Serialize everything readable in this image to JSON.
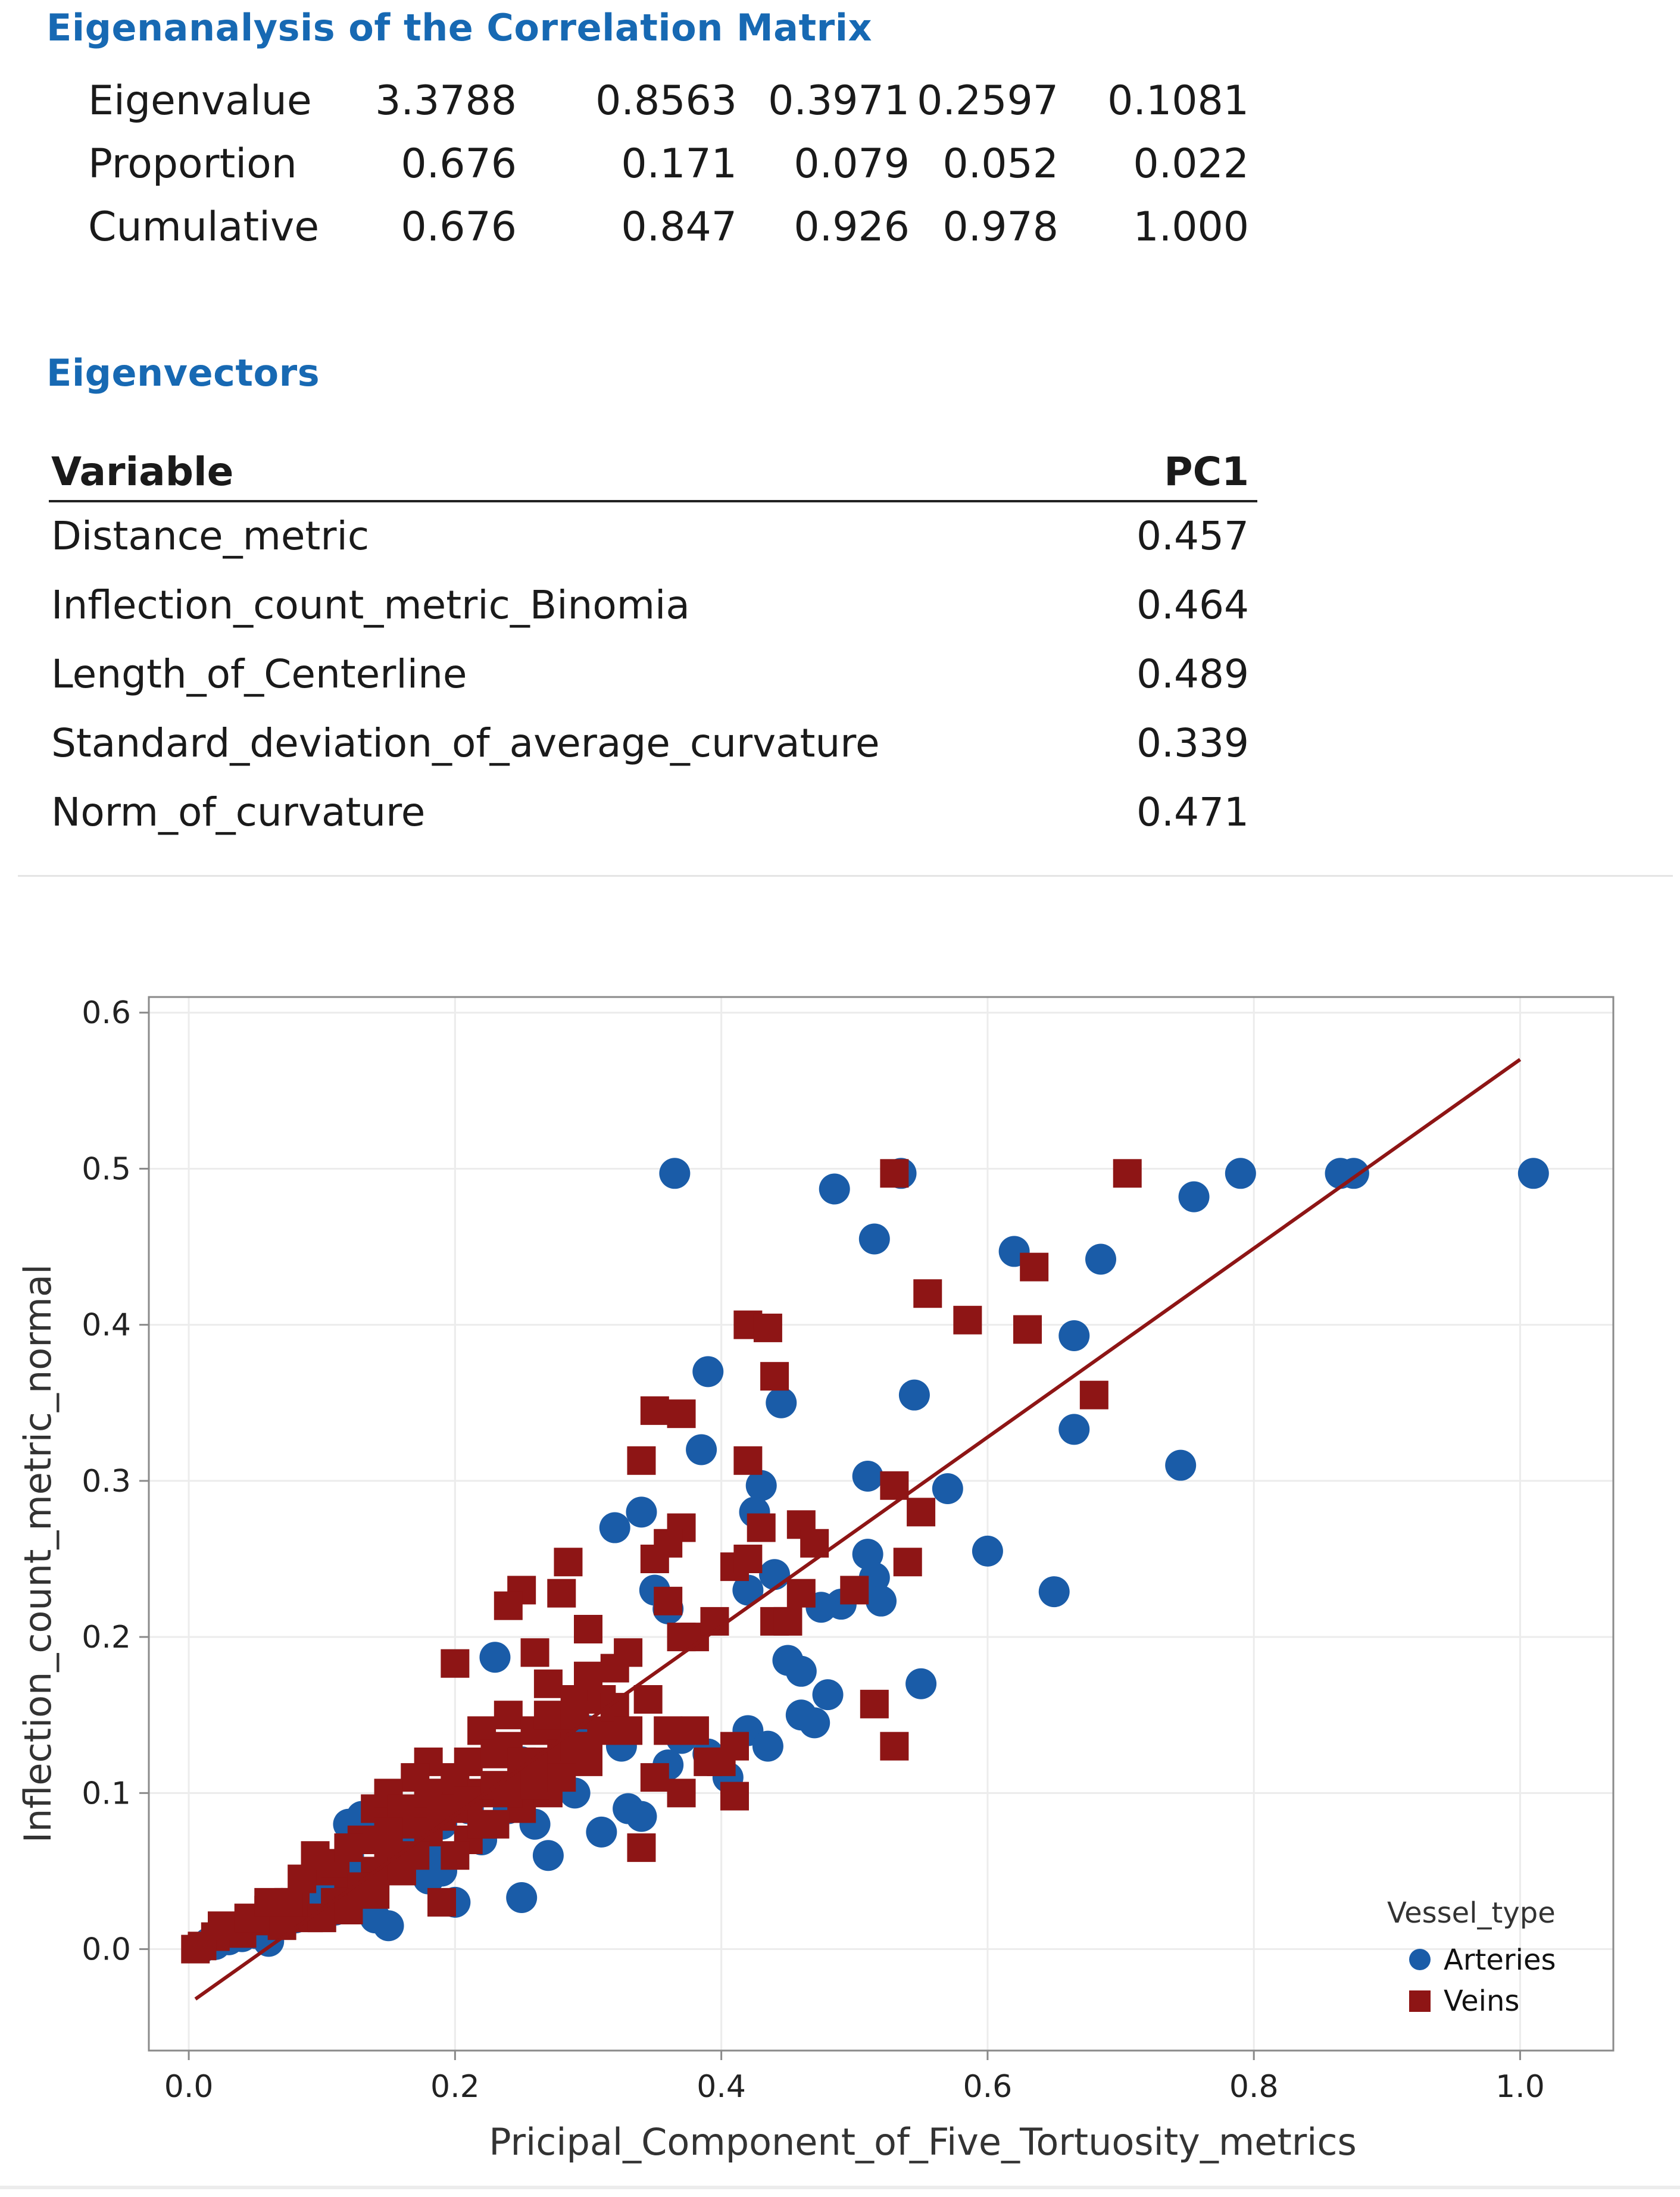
{
  "eigen_title": "Eigenanalysis of the Correlation Matrix",
  "eigen_rows": [
    {
      "label": "Eigenvalue",
      "values": [
        "3.3788",
        "0.8563",
        "0.3971",
        "0.2597",
        "0.1081"
      ]
    },
    {
      "label": "Proportion",
      "values": [
        "0.676",
        "0.171",
        "0.079",
        "0.052",
        "0.022"
      ]
    },
    {
      "label": "Cumulative",
      "values": [
        "0.676",
        "0.847",
        "0.926",
        "0.978",
        "1.000"
      ]
    }
  ],
  "vectors_title": "Eigenvectors",
  "vectors_header": {
    "variable": "Variable",
    "pc": "PC1"
  },
  "vectors": [
    {
      "name": "Distance_metric",
      "value": "0.457"
    },
    {
      "name": "Inflection_count_metric_Binomia",
      "value": "0.464"
    },
    {
      "name": "Length_of_Centerline",
      "value": "0.489"
    },
    {
      "name": "Standard_deviation_of_average_curvature",
      "value": "0.339"
    },
    {
      "name": "Norm_of_curvature",
      "value": "0.471"
    }
  ],
  "chart_data": {
    "type": "scatter",
    "title": "",
    "xlabel": "Pricipal_Component_of_Five_Tortuosity_metrics",
    "ylabel": "Inflection_count_metric_normal",
    "xlim": [
      -0.03,
      1.07
    ],
    "ylim": [
      -0.065,
      0.61
    ],
    "xticks": [
      "0.0",
      "0.2",
      "0.4",
      "0.6",
      "0.8",
      "1.0"
    ],
    "yticks": [
      "0.0",
      "0.1",
      "0.2",
      "0.3",
      "0.4",
      "0.5",
      "0.6"
    ],
    "grid": true,
    "legend": {
      "title": "Vessel_type",
      "position": "bottom-right"
    },
    "series": [
      {
        "name": "Arteries",
        "color": "#1a5ca8",
        "marker": "circle",
        "points": [
          [
            0.365,
            0.497
          ],
          [
            0.485,
            0.487
          ],
          [
            0.535,
            0.497
          ],
          [
            0.515,
            0.455
          ],
          [
            0.755,
            0.482
          ],
          [
            0.79,
            0.497
          ],
          [
            0.865,
            0.497
          ],
          [
            0.875,
            0.497
          ],
          [
            1.01,
            0.497
          ],
          [
            0.62,
            0.447
          ],
          [
            0.685,
            0.442
          ],
          [
            0.665,
            0.393
          ],
          [
            0.39,
            0.37
          ],
          [
            0.445,
            0.35
          ],
          [
            0.545,
            0.355
          ],
          [
            0.665,
            0.333
          ],
          [
            0.745,
            0.31
          ],
          [
            0.385,
            0.32
          ],
          [
            0.43,
            0.297
          ],
          [
            0.425,
            0.28
          ],
          [
            0.51,
            0.303
          ],
          [
            0.57,
            0.295
          ],
          [
            0.34,
            0.28
          ],
          [
            0.32,
            0.27
          ],
          [
            0.6,
            0.255
          ],
          [
            0.65,
            0.229
          ],
          [
            0.51,
            0.253
          ],
          [
            0.515,
            0.238
          ],
          [
            0.52,
            0.223
          ],
          [
            0.49,
            0.221
          ],
          [
            0.475,
            0.219
          ],
          [
            0.42,
            0.23
          ],
          [
            0.44,
            0.24
          ],
          [
            0.35,
            0.23
          ],
          [
            0.36,
            0.218
          ],
          [
            0.45,
            0.185
          ],
          [
            0.46,
            0.178
          ],
          [
            0.55,
            0.17
          ],
          [
            0.48,
            0.163
          ],
          [
            0.42,
            0.14
          ],
          [
            0.435,
            0.13
          ],
          [
            0.46,
            0.15
          ],
          [
            0.47,
            0.145
          ],
          [
            0.39,
            0.125
          ],
          [
            0.37,
            0.135
          ],
          [
            0.405,
            0.11
          ],
          [
            0.23,
            0.187
          ],
          [
            0.25,
            0.12
          ],
          [
            0.27,
            0.11
          ],
          [
            0.3,
            0.14
          ],
          [
            0.325,
            0.13
          ],
          [
            0.36,
            0.118
          ],
          [
            0.33,
            0.09
          ],
          [
            0.34,
            0.085
          ],
          [
            0.25,
            0.033
          ],
          [
            0.27,
            0.06
          ],
          [
            0.21,
            0.09
          ],
          [
            0.19,
            0.08
          ],
          [
            0.19,
            0.05
          ],
          [
            0.14,
            0.08
          ],
          [
            0.16,
            0.07
          ],
          [
            0.18,
            0.06
          ],
          [
            0.12,
            0.06
          ],
          [
            0.13,
            0.045
          ],
          [
            0.1,
            0.035
          ],
          [
            0.14,
            0.02
          ],
          [
            0.11,
            0.025
          ],
          [
            0.08,
            0.02
          ],
          [
            0.06,
            0.015
          ],
          [
            0.04,
            0.008
          ],
          [
            0.05,
            0.01
          ],
          [
            0.06,
            0.005
          ],
          [
            0.03,
            0.006
          ],
          [
            0.02,
            0.003
          ],
          [
            0.01,
            0.001
          ],
          [
            0.015,
            0.004
          ],
          [
            0.09,
            0.04
          ],
          [
            0.1,
            0.05
          ],
          [
            0.12,
            0.08
          ],
          [
            0.13,
            0.085
          ],
          [
            0.15,
            0.09
          ],
          [
            0.16,
            0.075
          ],
          [
            0.2,
            0.03
          ],
          [
            0.22,
            0.07
          ],
          [
            0.24,
            0.09
          ],
          [
            0.15,
            0.015
          ],
          [
            0.18,
            0.045
          ],
          [
            0.26,
            0.08
          ],
          [
            0.29,
            0.1
          ],
          [
            0.31,
            0.075
          ]
        ]
      },
      {
        "name": "Veins",
        "color": "#8e1515",
        "marker": "square",
        "points": [
          [
            0.53,
            0.497
          ],
          [
            0.705,
            0.497
          ],
          [
            0.555,
            0.42
          ],
          [
            0.585,
            0.403
          ],
          [
            0.635,
            0.437
          ],
          [
            0.63,
            0.397
          ],
          [
            0.68,
            0.355
          ],
          [
            0.42,
            0.4
          ],
          [
            0.435,
            0.398
          ],
          [
            0.44,
            0.367
          ],
          [
            0.35,
            0.345
          ],
          [
            0.37,
            0.343
          ],
          [
            0.34,
            0.313
          ],
          [
            0.42,
            0.313
          ],
          [
            0.53,
            0.297
          ],
          [
            0.55,
            0.28
          ],
          [
            0.43,
            0.27
          ],
          [
            0.46,
            0.272
          ],
          [
            0.47,
            0.26
          ],
          [
            0.37,
            0.27
          ],
          [
            0.36,
            0.26
          ],
          [
            0.35,
            0.25
          ],
          [
            0.41,
            0.245
          ],
          [
            0.42,
            0.25
          ],
          [
            0.54,
            0.248
          ],
          [
            0.285,
            0.248
          ],
          [
            0.25,
            0.23
          ],
          [
            0.28,
            0.228
          ],
          [
            0.24,
            0.22
          ],
          [
            0.46,
            0.228
          ],
          [
            0.5,
            0.23
          ],
          [
            0.44,
            0.21
          ],
          [
            0.45,
            0.21
          ],
          [
            0.36,
            0.223
          ],
          [
            0.37,
            0.2
          ],
          [
            0.38,
            0.2
          ],
          [
            0.395,
            0.21
          ],
          [
            0.3,
            0.205
          ],
          [
            0.32,
            0.18
          ],
          [
            0.33,
            0.19
          ],
          [
            0.26,
            0.19
          ],
          [
            0.2,
            0.183
          ],
          [
            0.27,
            0.17
          ],
          [
            0.24,
            0.15
          ],
          [
            0.29,
            0.16
          ],
          [
            0.31,
            0.16
          ],
          [
            0.345,
            0.16
          ],
          [
            0.36,
            0.14
          ],
          [
            0.38,
            0.14
          ],
          [
            0.39,
            0.12
          ],
          [
            0.4,
            0.12
          ],
          [
            0.41,
            0.13
          ],
          [
            0.37,
            0.1
          ],
          [
            0.35,
            0.11
          ],
          [
            0.515,
            0.157
          ],
          [
            0.53,
            0.13
          ],
          [
            0.41,
            0.098
          ],
          [
            0.34,
            0.065
          ],
          [
            0.28,
            0.14
          ],
          [
            0.26,
            0.12
          ],
          [
            0.3,
            0.12
          ],
          [
            0.22,
            0.14
          ],
          [
            0.25,
            0.09
          ],
          [
            0.27,
            0.1
          ],
          [
            0.23,
            0.08
          ],
          [
            0.21,
            0.07
          ],
          [
            0.2,
            0.06
          ],
          [
            0.19,
            0.1
          ],
          [
            0.18,
            0.12
          ],
          [
            0.17,
            0.11
          ],
          [
            0.19,
            0.03
          ],
          [
            0.16,
            0.08
          ],
          [
            0.15,
            0.06
          ],
          [
            0.14,
            0.05
          ],
          [
            0.13,
            0.07
          ],
          [
            0.12,
            0.04
          ],
          [
            0.11,
            0.03
          ],
          [
            0.1,
            0.05
          ],
          [
            0.09,
            0.02
          ],
          [
            0.08,
            0.03
          ],
          [
            0.07,
            0.015
          ],
          [
            0.06,
            0.025
          ],
          [
            0.05,
            0.018
          ],
          [
            0.04,
            0.01
          ],
          [
            0.03,
            0.012
          ],
          [
            0.02,
            0.008
          ],
          [
            0.01,
            0.002
          ],
          [
            0.005,
            0.0
          ],
          [
            0.025,
            0.015
          ],
          [
            0.045,
            0.02
          ],
          [
            0.06,
            0.03
          ],
          [
            0.075,
            0.03
          ],
          [
            0.085,
            0.045
          ],
          [
            0.095,
            0.06
          ],
          [
            0.1,
            0.02
          ],
          [
            0.11,
            0.055
          ],
          [
            0.12,
            0.065
          ],
          [
            0.13,
            0.04
          ],
          [
            0.14,
            0.09
          ],
          [
            0.15,
            0.1
          ],
          [
            0.16,
            0.09
          ],
          [
            0.17,
            0.085
          ],
          [
            0.18,
            0.1
          ],
          [
            0.2,
            0.11
          ],
          [
            0.21,
            0.12
          ],
          [
            0.22,
            0.1
          ],
          [
            0.23,
            0.125
          ],
          [
            0.24,
            0.13
          ],
          [
            0.25,
            0.115
          ],
          [
            0.26,
            0.14
          ],
          [
            0.27,
            0.15
          ],
          [
            0.28,
            0.125
          ],
          [
            0.29,
            0.13
          ],
          [
            0.3,
            0.175
          ],
          [
            0.31,
            0.14
          ],
          [
            0.32,
            0.155
          ],
          [
            0.33,
            0.14
          ],
          [
            0.2,
            0.09
          ],
          [
            0.18,
            0.075
          ],
          [
            0.16,
            0.05
          ],
          [
            0.14,
            0.035
          ],
          [
            0.12,
            0.025
          ],
          [
            0.15,
            0.075
          ],
          [
            0.17,
            0.06
          ],
          [
            0.19,
            0.085
          ],
          [
            0.21,
            0.095
          ],
          [
            0.23,
            0.105
          ],
          [
            0.22,
            0.08
          ],
          [
            0.24,
            0.1
          ],
          [
            0.25,
            0.12
          ],
          [
            0.26,
            0.105
          ],
          [
            0.28,
            0.11
          ],
          [
            0.29,
            0.15
          ],
          [
            0.3,
            0.13
          ]
        ]
      }
    ],
    "fit_line": {
      "x": [
        0.005,
        1.0
      ],
      "y": [
        -0.032,
        0.57
      ],
      "color": "#8e1515"
    }
  }
}
